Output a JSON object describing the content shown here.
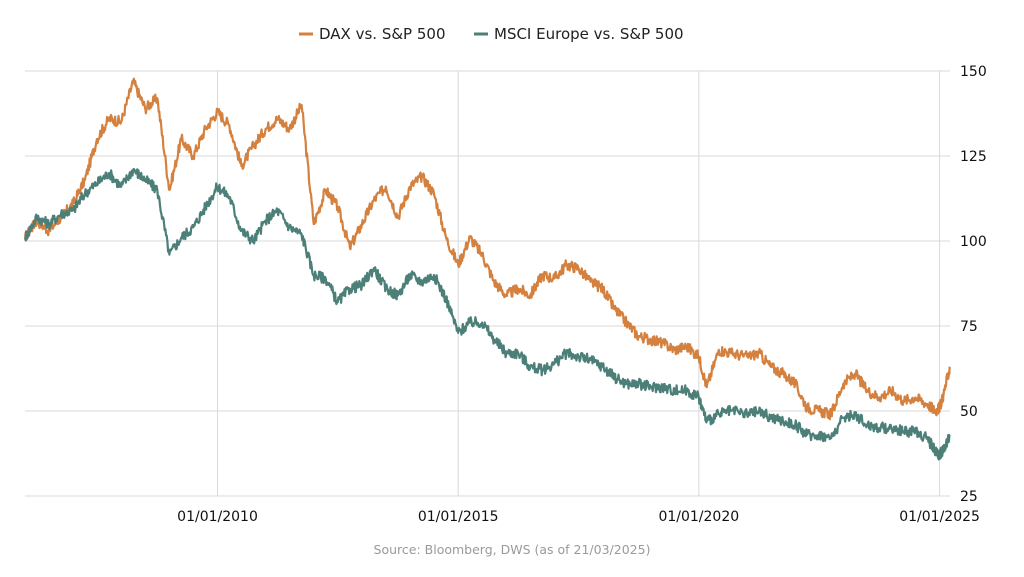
{
  "source_note": "Source: Bloomberg, DWS (as of 21/03/2025)",
  "chart_data": {
    "type": "line",
    "title": "",
    "xlabel": "",
    "ylabel": "",
    "ylim": [
      25,
      150
    ],
    "y_ticks": [
      25,
      50,
      75,
      100,
      125,
      150
    ],
    "x_range": [
      "2006-01-01",
      "2025-03-21"
    ],
    "x_ticks": [
      "2010-01-01",
      "2015-01-01",
      "2020-01-01",
      "2025-01-01"
    ],
    "x_tick_labels": [
      "01/01/2010",
      "01/01/2015",
      "01/01/2020",
      "01/01/2025"
    ],
    "y_axis_side": "right",
    "grid": true,
    "legend_position": "top-center",
    "series": [
      {
        "name": "DAX vs. S&P 500",
        "color": "#d4813f",
        "points": [
          [
            "2006-01-01",
            101
          ],
          [
            "2006-04-01",
            106
          ],
          [
            "2006-07-01",
            103
          ],
          [
            "2006-10-01",
            107
          ],
          [
            "2007-01-01",
            111
          ],
          [
            "2007-04-01",
            118
          ],
          [
            "2007-07-01",
            130
          ],
          [
            "2007-10-01",
            136
          ],
          [
            "2008-01-01",
            135
          ],
          [
            "2008-04-01",
            147
          ],
          [
            "2008-07-01",
            139
          ],
          [
            "2008-10-01",
            142
          ],
          [
            "2009-01-01",
            115
          ],
          [
            "2009-04-01",
            130
          ],
          [
            "2009-07-01",
            125
          ],
          [
            "2009-10-01",
            133
          ],
          [
            "2010-01-01",
            138
          ],
          [
            "2010-04-01",
            134
          ],
          [
            "2010-07-01",
            122
          ],
          [
            "2010-10-01",
            128
          ],
          [
            "2011-01-01",
            133
          ],
          [
            "2011-04-01",
            136
          ],
          [
            "2011-07-01",
            133
          ],
          [
            "2011-10-01",
            140
          ],
          [
            "2012-01-01",
            105
          ],
          [
            "2012-04-01",
            115
          ],
          [
            "2012-07-01",
            110
          ],
          [
            "2012-10-01",
            98
          ],
          [
            "2013-01-01",
            105
          ],
          [
            "2013-04-01",
            112
          ],
          [
            "2013-07-01",
            116
          ],
          [
            "2013-10-01",
            107
          ],
          [
            "2014-01-01",
            116
          ],
          [
            "2014-04-01",
            119
          ],
          [
            "2014-07-01",
            114
          ],
          [
            "2014-10-01",
            101
          ],
          [
            "2015-01-01",
            93
          ],
          [
            "2015-04-01",
            101
          ],
          [
            "2015-07-01",
            96
          ],
          [
            "2015-10-01",
            88
          ],
          [
            "2016-01-01",
            84
          ],
          [
            "2016-04-01",
            86
          ],
          [
            "2016-07-01",
            84
          ],
          [
            "2016-10-01",
            90
          ],
          [
            "2017-01-01",
            89
          ],
          [
            "2017-04-01",
            93
          ],
          [
            "2017-07-01",
            92
          ],
          [
            "2017-10-01",
            88
          ],
          [
            "2018-01-01",
            86
          ],
          [
            "2018-04-01",
            80
          ],
          [
            "2018-07-01",
            76
          ],
          [
            "2018-10-01",
            72
          ],
          [
            "2019-01-01",
            71
          ],
          [
            "2019-04-01",
            70
          ],
          [
            "2019-07-01",
            68
          ],
          [
            "2019-10-01",
            69
          ],
          [
            "2020-01-01",
            66
          ],
          [
            "2020-03-01",
            57
          ],
          [
            "2020-06-01",
            68
          ],
          [
            "2020-09-01",
            67
          ],
          [
            "2021-01-01",
            66
          ],
          [
            "2021-04-01",
            67
          ],
          [
            "2021-07-01",
            63
          ],
          [
            "2021-10-01",
            61
          ],
          [
            "2022-01-01",
            58
          ],
          [
            "2022-04-01",
            51
          ],
          [
            "2022-07-01",
            50
          ],
          [
            "2022-10-01",
            49
          ],
          [
            "2023-01-01",
            58
          ],
          [
            "2023-04-01",
            61
          ],
          [
            "2023-07-01",
            56
          ],
          [
            "2023-10-01",
            54
          ],
          [
            "2024-01-01",
            56
          ],
          [
            "2024-04-01",
            53
          ],
          [
            "2024-07-01",
            54
          ],
          [
            "2024-10-01",
            52
          ],
          [
            "2024-12-01",
            50
          ],
          [
            "2025-01-01",
            51
          ],
          [
            "2025-02-01",
            55
          ],
          [
            "2025-03-21",
            63
          ]
        ]
      },
      {
        "name": "MSCI Europe vs. S&P 500",
        "color": "#4d7f79",
        "points": [
          [
            "2006-01-01",
            101
          ],
          [
            "2006-04-01",
            107
          ],
          [
            "2006-07-01",
            105
          ],
          [
            "2006-10-01",
            108
          ],
          [
            "2007-01-01",
            109
          ],
          [
            "2007-04-01",
            114
          ],
          [
            "2007-07-01",
            117
          ],
          [
            "2007-10-01",
            120
          ],
          [
            "2008-01-01",
            116
          ],
          [
            "2008-04-01",
            121
          ],
          [
            "2008-07-01",
            118
          ],
          [
            "2008-10-01",
            115
          ],
          [
            "2009-01-01",
            96
          ],
          [
            "2009-04-01",
            101
          ],
          [
            "2009-07-01",
            104
          ],
          [
            "2009-10-01",
            110
          ],
          [
            "2010-01-01",
            116
          ],
          [
            "2010-04-01",
            113
          ],
          [
            "2010-07-01",
            103
          ],
          [
            "2010-10-01",
            100
          ],
          [
            "2011-01-01",
            106
          ],
          [
            "2011-04-01",
            109
          ],
          [
            "2011-07-01",
            104
          ],
          [
            "2011-10-01",
            102
          ],
          [
            "2012-01-01",
            90
          ],
          [
            "2012-04-01",
            89
          ],
          [
            "2012-07-01",
            82
          ],
          [
            "2012-10-01",
            86
          ],
          [
            "2013-01-01",
            87
          ],
          [
            "2013-04-01",
            92
          ],
          [
            "2013-07-01",
            86
          ],
          [
            "2013-10-01",
            84
          ],
          [
            "2014-01-01",
            90
          ],
          [
            "2014-04-01",
            88
          ],
          [
            "2014-07-01",
            90
          ],
          [
            "2014-10-01",
            83
          ],
          [
            "2015-01-01",
            73
          ],
          [
            "2015-04-01",
            76
          ],
          [
            "2015-07-01",
            76
          ],
          [
            "2015-10-01",
            71
          ],
          [
            "2016-01-01",
            67
          ],
          [
            "2016-04-01",
            67
          ],
          [
            "2016-07-01",
            63
          ],
          [
            "2016-10-01",
            62
          ],
          [
            "2017-01-01",
            64
          ],
          [
            "2017-04-01",
            67
          ],
          [
            "2017-07-01",
            66
          ],
          [
            "2017-10-01",
            65
          ],
          [
            "2018-01-01",
            63
          ],
          [
            "2018-04-01",
            60
          ],
          [
            "2018-07-01",
            58
          ],
          [
            "2018-10-01",
            58
          ],
          [
            "2019-01-01",
            57
          ],
          [
            "2019-04-01",
            57
          ],
          [
            "2019-07-01",
            56
          ],
          [
            "2019-10-01",
            56
          ],
          [
            "2020-01-01",
            54
          ],
          [
            "2020-03-01",
            47
          ],
          [
            "2020-06-01",
            49
          ],
          [
            "2020-09-01",
            50
          ],
          [
            "2021-01-01",
            49
          ],
          [
            "2021-04-01",
            50
          ],
          [
            "2021-07-01",
            48
          ],
          [
            "2021-10-01",
            47
          ],
          [
            "2022-01-01",
            46
          ],
          [
            "2022-04-01",
            43
          ],
          [
            "2022-07-01",
            43
          ],
          [
            "2022-10-01",
            42
          ],
          [
            "2023-01-01",
            48
          ],
          [
            "2023-04-01",
            49
          ],
          [
            "2023-07-01",
            46
          ],
          [
            "2023-10-01",
            45
          ],
          [
            "2024-01-01",
            45
          ],
          [
            "2024-04-01",
            44
          ],
          [
            "2024-07-01",
            44
          ],
          [
            "2024-10-01",
            42
          ],
          [
            "2024-12-01",
            38
          ],
          [
            "2025-01-01",
            37
          ],
          [
            "2025-02-01",
            39
          ],
          [
            "2025-03-21",
            43
          ]
        ]
      }
    ]
  }
}
